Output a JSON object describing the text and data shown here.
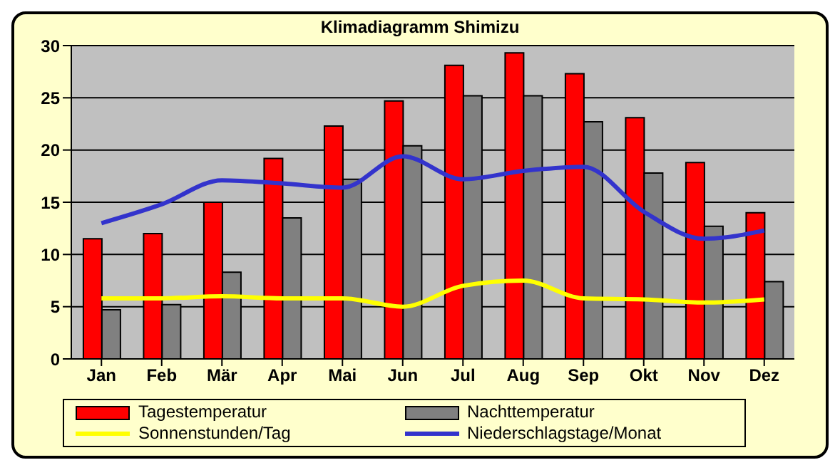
{
  "chart_data": {
    "type": "bar",
    "title": "Klimadiagramm Shimizu",
    "categories": [
      "Jan",
      "Feb",
      "Mär",
      "Apr",
      "Mai",
      "Jun",
      "Jul",
      "Aug",
      "Sep",
      "Okt",
      "Nov",
      "Dez"
    ],
    "series": [
      {
        "name": "Tagestemperatur",
        "color": "#ff0000",
        "values": [
          11.5,
          12,
          15,
          19.2,
          22.3,
          24.7,
          28.1,
          29.3,
          27.3,
          23.1,
          18.8,
          14
        ]
      },
      {
        "name": "Nachttemperatur",
        "color": "#808080",
        "values": [
          4.7,
          5.2,
          8.3,
          13.5,
          17.2,
          20.4,
          25.2,
          25.2,
          22.7,
          17.8,
          12.7,
          7.4
        ]
      },
      {
        "name": "Sonnenstunden/Tag",
        "type": "line",
        "color": "#ffff00",
        "values": [
          5.8,
          5.8,
          6.0,
          5.8,
          5.8,
          5.0,
          7.0,
          7.5,
          5.8,
          5.7,
          5.4,
          5.7
        ]
      },
      {
        "name": "Niederschlagstage/Monat",
        "type": "line",
        "color": "#3333cc",
        "values": [
          13,
          14.8,
          17.1,
          16.8,
          16.4,
          19.4,
          17.2,
          18.0,
          18.4,
          14.1,
          11.5,
          12.3
        ]
      }
    ],
    "ylim": [
      0,
      30
    ],
    "yticks": [
      0,
      5,
      10,
      15,
      20,
      25,
      30
    ],
    "grid": "y",
    "legend": "bottom",
    "marker": "none",
    "line_style": "solid"
  }
}
